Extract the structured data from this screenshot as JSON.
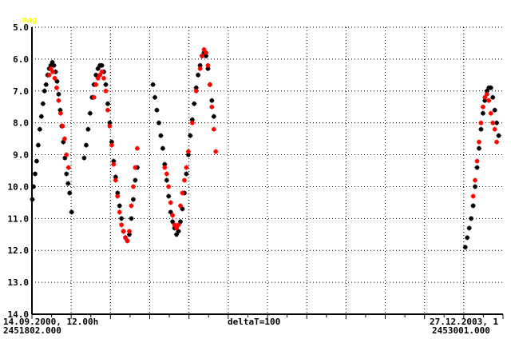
{
  "chart_data": {
    "type": "scatter",
    "ylabel": "mag",
    "y_axis_inverted": true,
    "ylim": [
      5.0,
      14.0
    ],
    "y_ticks": [
      "5.0",
      "6.0",
      "7.0",
      "8.0",
      "9.0",
      "10.0",
      "11.0",
      "12.0",
      "13.0",
      "14.0"
    ],
    "xlim": [
      2451802.0,
      2453001.0
    ],
    "grid": true,
    "footer": {
      "left_date": "14.09.2000, 12.00h",
      "left_jd": "2451802.000",
      "center": "deltaT=100",
      "right_date": "27.12.2003, 1",
      "right_jd": "2453001.000"
    },
    "colors": {
      "black_series": "#000000",
      "red_series": "#ff0000",
      "ylabel": "#ffff00",
      "grid": "#000000"
    },
    "series": [
      {
        "color": "#000000",
        "points": [
          [
            2451803,
            10.4
          ],
          [
            2451806,
            10.0
          ],
          [
            2451810,
            9.6
          ],
          [
            2451814,
            9.2
          ],
          [
            2451818,
            8.7
          ],
          [
            2451822,
            8.2
          ],
          [
            2451826,
            7.8
          ],
          [
            2451830,
            7.4
          ],
          [
            2451834,
            7.0
          ],
          [
            2451838,
            6.8
          ],
          [
            2451842,
            6.5
          ],
          [
            2451846,
            6.3
          ],
          [
            2451850,
            6.2
          ],
          [
            2451854,
            6.1
          ],
          [
            2451858,
            6.2
          ],
          [
            2451862,
            6.4
          ],
          [
            2451866,
            6.7
          ],
          [
            2451870,
            7.1
          ],
          [
            2451874,
            7.6
          ],
          [
            2451878,
            8.1
          ],
          [
            2451882,
            8.6
          ],
          [
            2451886,
            9.1
          ],
          [
            2451890,
            9.6
          ],
          [
            2451894,
            9.9
          ],
          [
            2451898,
            10.2
          ],
          [
            2451903,
            10.8
          ],
          [
            2451935,
            9.1
          ],
          [
            2451940,
            8.7
          ],
          [
            2451945,
            8.2
          ],
          [
            2451950,
            7.7
          ],
          [
            2451955,
            7.2
          ],
          [
            2451960,
            6.8
          ],
          [
            2451965,
            6.5
          ],
          [
            2451970,
            6.3
          ],
          [
            2451975,
            6.2
          ],
          [
            2451980,
            6.2
          ],
          [
            2451985,
            6.4
          ],
          [
            2451990,
            6.8
          ],
          [
            2451995,
            7.4
          ],
          [
            2452000,
            8.0
          ],
          [
            2452005,
            8.6
          ],
          [
            2452010,
            9.2
          ],
          [
            2452015,
            9.7
          ],
          [
            2452020,
            10.2
          ],
          [
            2452025,
            10.6
          ],
          [
            2452030,
            11.0
          ],
          [
            2452035,
            11.4
          ],
          [
            2452040,
            11.6
          ],
          [
            2452045,
            11.7
          ],
          [
            2452050,
            11.5
          ],
          [
            2452055,
            11.0
          ],
          [
            2452060,
            10.4
          ],
          [
            2452065,
            9.8
          ],
          [
            2452070,
            9.4
          ],
          [
            2452110,
            6.8
          ],
          [
            2452115,
            7.2
          ],
          [
            2452120,
            7.6
          ],
          [
            2452125,
            8.0
          ],
          [
            2452130,
            8.4
          ],
          [
            2452135,
            8.8
          ],
          [
            2452140,
            9.3
          ],
          [
            2452145,
            9.8
          ],
          [
            2452150,
            10.3
          ],
          [
            2452155,
            10.8
          ],
          [
            2452160,
            11.1
          ],
          [
            2452165,
            11.3
          ],
          [
            2452170,
            11.5
          ],
          [
            2452175,
            11.4
          ],
          [
            2452180,
            11.1
          ],
          [
            2452185,
            10.7
          ],
          [
            2452190,
            10.2
          ],
          [
            2452195,
            9.6
          ],
          [
            2452200,
            9.0
          ],
          [
            2452205,
            8.4
          ],
          [
            2452210,
            7.9
          ],
          [
            2452215,
            7.4
          ],
          [
            2452220,
            6.9
          ],
          [
            2452225,
            6.5
          ],
          [
            2452230,
            6.2
          ],
          [
            2452235,
            5.9
          ],
          [
            2452240,
            5.8
          ],
          [
            2452245,
            5.9
          ],
          [
            2452250,
            6.3
          ],
          [
            2452255,
            6.8
          ],
          [
            2452260,
            7.3
          ],
          [
            2452265,
            7.8
          ],
          [
            2452905,
            11.9
          ],
          [
            2452910,
            11.6
          ],
          [
            2452915,
            11.3
          ],
          [
            2452920,
            11.0
          ],
          [
            2452925,
            10.6
          ],
          [
            2452930,
            10.0
          ],
          [
            2452935,
            9.4
          ],
          [
            2452940,
            8.8
          ],
          [
            2452945,
            8.2
          ],
          [
            2452950,
            7.7
          ],
          [
            2452955,
            7.3
          ],
          [
            2452960,
            7.0
          ],
          [
            2452965,
            6.9
          ],
          [
            2452970,
            6.9
          ],
          [
            2452975,
            7.2
          ],
          [
            2452980,
            7.6
          ],
          [
            2452985,
            8.0
          ],
          [
            2452990,
            8.4
          ]
        ]
      },
      {
        "color": "#ff0000",
        "points": [
          [
            2451846,
            6.5
          ],
          [
            2451850,
            6.3
          ],
          [
            2451855,
            6.4
          ],
          [
            2451860,
            6.6
          ],
          [
            2451865,
            6.9
          ],
          [
            2451870,
            7.3
          ],
          [
            2451875,
            7.7
          ],
          [
            2451880,
            8.1
          ],
          [
            2451885,
            8.5
          ],
          [
            2451890,
            9.0
          ],
          [
            2451895,
            9.4
          ],
          [
            2451960,
            7.2
          ],
          [
            2451965,
            6.8
          ],
          [
            2451970,
            6.6
          ],
          [
            2451975,
            6.5
          ],
          [
            2451980,
            6.4
          ],
          [
            2451985,
            6.6
          ],
          [
            2451990,
            7.0
          ],
          [
            2451995,
            7.6
          ],
          [
            2452000,
            8.1
          ],
          [
            2452005,
            8.7
          ],
          [
            2452010,
            9.3
          ],
          [
            2452015,
            9.8
          ],
          [
            2452020,
            10.3
          ],
          [
            2452025,
            10.8
          ],
          [
            2452030,
            11.2
          ],
          [
            2452035,
            11.4
          ],
          [
            2452040,
            11.6
          ],
          [
            2452045,
            11.7
          ],
          [
            2452050,
            11.4
          ],
          [
            2452055,
            10.6
          ],
          [
            2452060,
            10.0
          ],
          [
            2452065,
            9.4
          ],
          [
            2452070,
            8.8
          ],
          [
            2452140,
            9.4
          ],
          [
            2452145,
            9.6
          ],
          [
            2452150,
            10.0
          ],
          [
            2452155,
            10.5
          ],
          [
            2452160,
            10.9
          ],
          [
            2452165,
            11.2
          ],
          [
            2452170,
            11.3
          ],
          [
            2452175,
            11.2
          ],
          [
            2452180,
            10.6
          ],
          [
            2452185,
            10.2
          ],
          [
            2452190,
            9.8
          ],
          [
            2452195,
            9.4
          ],
          [
            2452200,
            8.9
          ],
          [
            2452210,
            8.0
          ],
          [
            2452220,
            7.0
          ],
          [
            2452230,
            6.3
          ],
          [
            2452235,
            5.9
          ],
          [
            2452240,
            5.7
          ],
          [
            2452245,
            5.8
          ],
          [
            2452250,
            6.2
          ],
          [
            2452255,
            6.8
          ],
          [
            2452260,
            7.5
          ],
          [
            2452265,
            8.2
          ],
          [
            2452270,
            8.9
          ],
          [
            2452925,
            10.3
          ],
          [
            2452930,
            9.8
          ],
          [
            2452935,
            9.2
          ],
          [
            2452940,
            8.6
          ],
          [
            2452945,
            8.0
          ],
          [
            2452950,
            7.5
          ],
          [
            2452955,
            7.2
          ],
          [
            2452960,
            7.1
          ],
          [
            2452965,
            7.3
          ],
          [
            2452970,
            7.7
          ],
          [
            2452975,
            8.0
          ],
          [
            2452980,
            8.2
          ],
          [
            2452985,
            8.6
          ]
        ]
      }
    ]
  }
}
